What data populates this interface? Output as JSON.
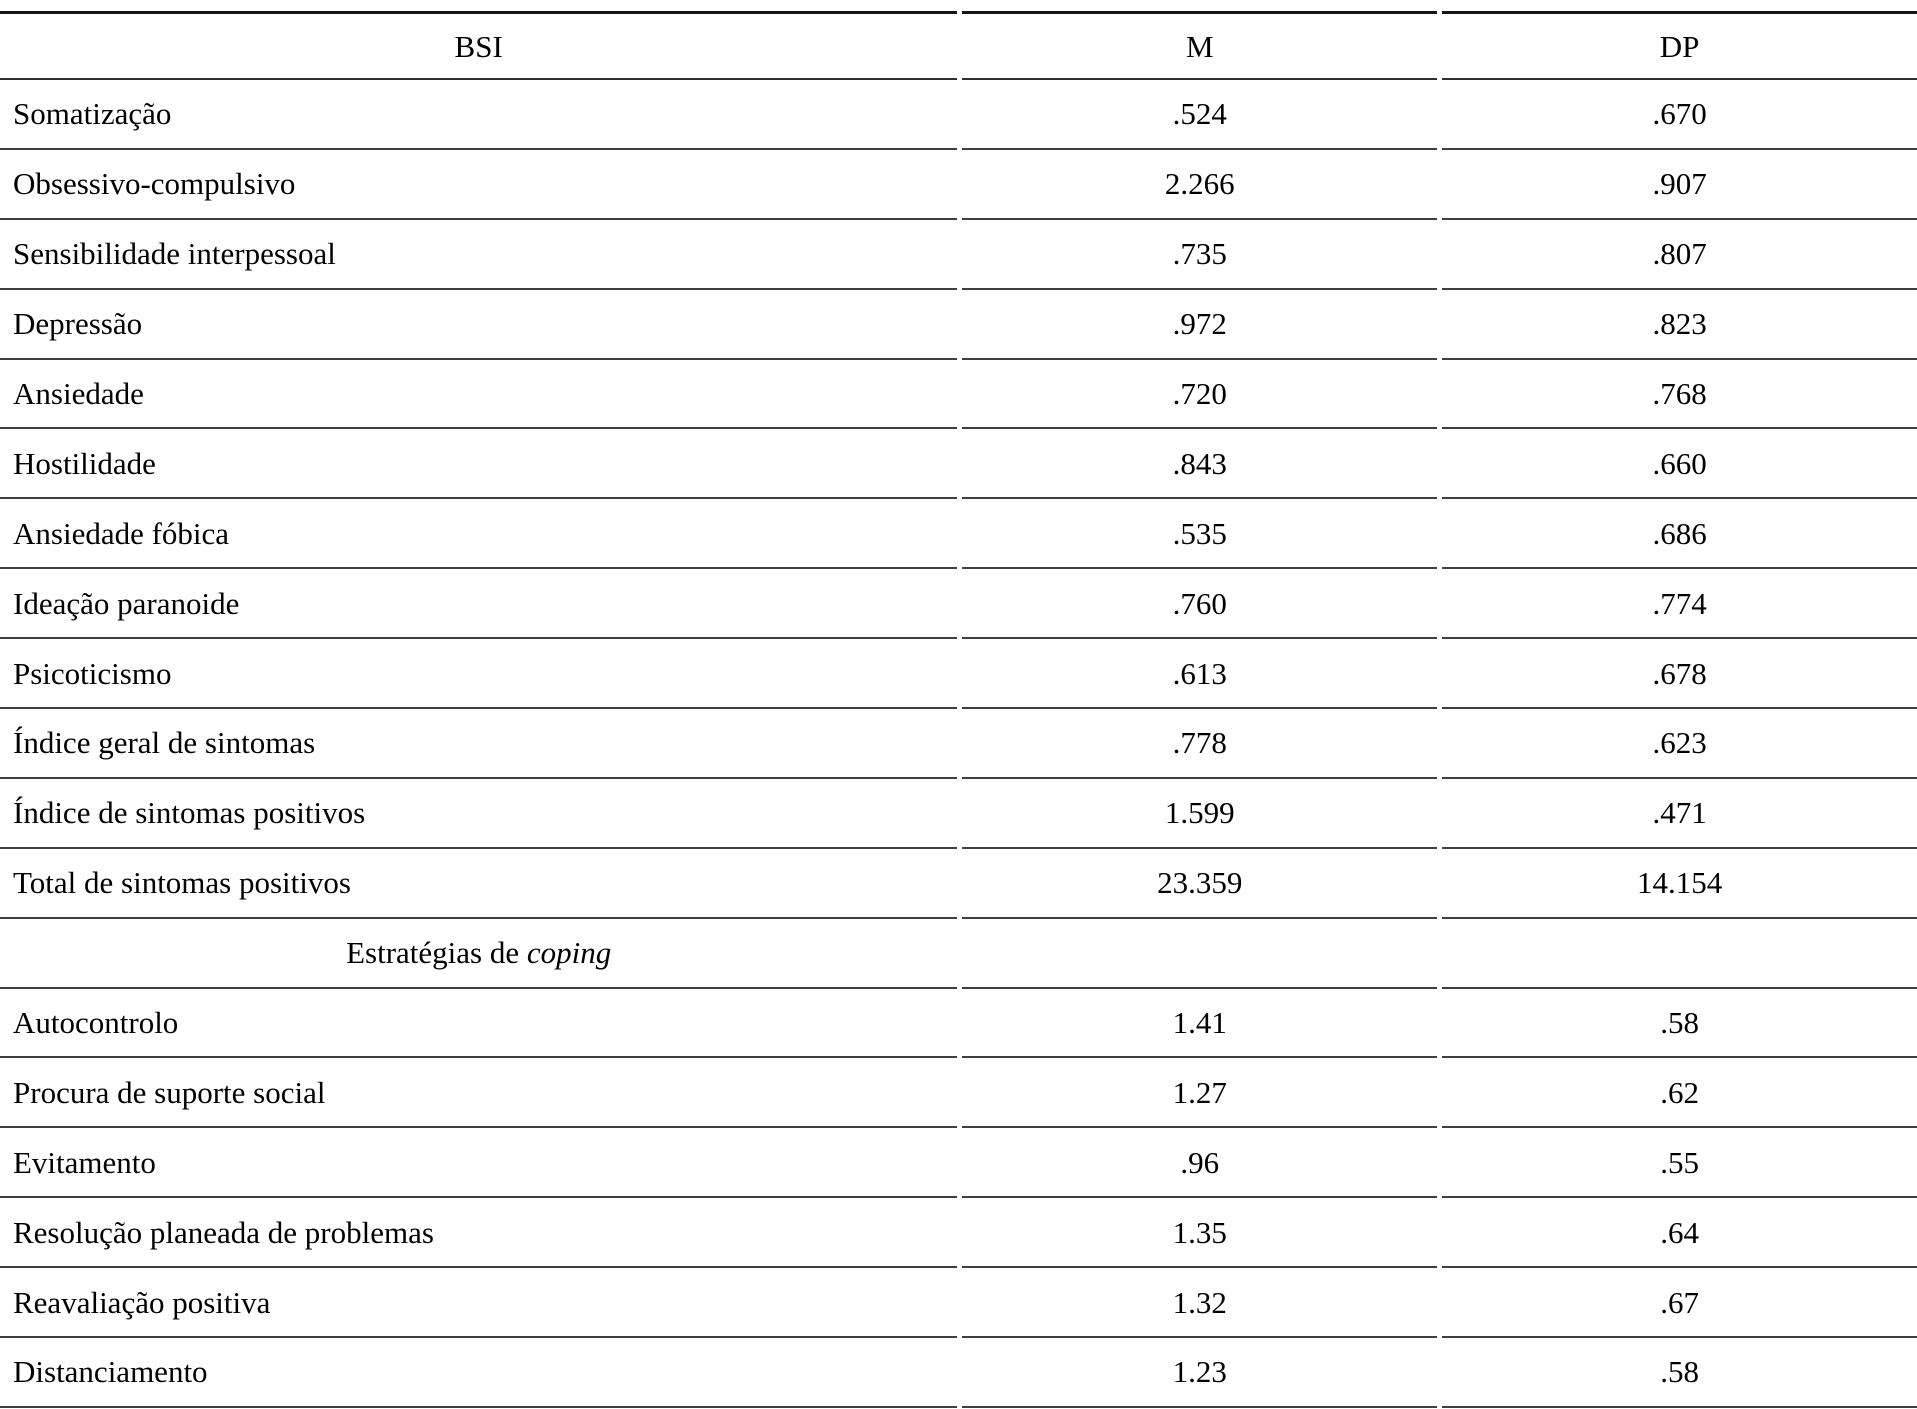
{
  "header": {
    "bsi": "BSI",
    "m": "M",
    "dp": "DP"
  },
  "bsi_rows": [
    {
      "label": "Somatização",
      "m": ".524",
      "dp": ".670"
    },
    {
      "label": "Obsessivo-compulsivo",
      "m": "2.266",
      "dp": ".907"
    },
    {
      "label": "Sensibilidade interpessoal",
      "m": ".735",
      "dp": ".807"
    },
    {
      "label": "Depressão",
      "m": ".972",
      "dp": ".823"
    },
    {
      "label": "Ansiedade",
      "m": ".720",
      "dp": ".768"
    },
    {
      "label": "Hostilidade",
      "m": ".843",
      "dp": ".660"
    },
    {
      "label": "Ansiedade fóbica",
      "m": ".535",
      "dp": ".686"
    },
    {
      "label": "Ideação paranoide",
      "m": ".760",
      "dp": ".774"
    },
    {
      "label": "Psicoticismo",
      "m": ".613",
      "dp": ".678"
    },
    {
      "label": "Índice geral de sintomas",
      "m": ".778",
      "dp": ".623"
    },
    {
      "label": "Índice de sintomas positivos",
      "m": "1.599",
      "dp": ".471"
    },
    {
      "label": "Total de sintomas positivos",
      "m": "23.359",
      "dp": "14.154"
    }
  ],
  "section": {
    "prefix": "Estratégias de ",
    "emphasis": "coping"
  },
  "coping_rows": [
    {
      "label": "Autocontrolo",
      "m": "1.41",
      "dp": ".58"
    },
    {
      "label": "Procura de suporte social",
      "m": "1.27",
      "dp": ".62"
    },
    {
      "label": "Evitamento",
      "m": ".96",
      "dp": ".55"
    },
    {
      "label": "Resolução planeada de problemas",
      "m": "1.35",
      "dp": ".64"
    },
    {
      "label": "Reavaliação positiva",
      "m": "1.32",
      "dp": ".67"
    },
    {
      "label": "Distanciamento",
      "m": "1.23",
      "dp": ".58"
    }
  ]
}
